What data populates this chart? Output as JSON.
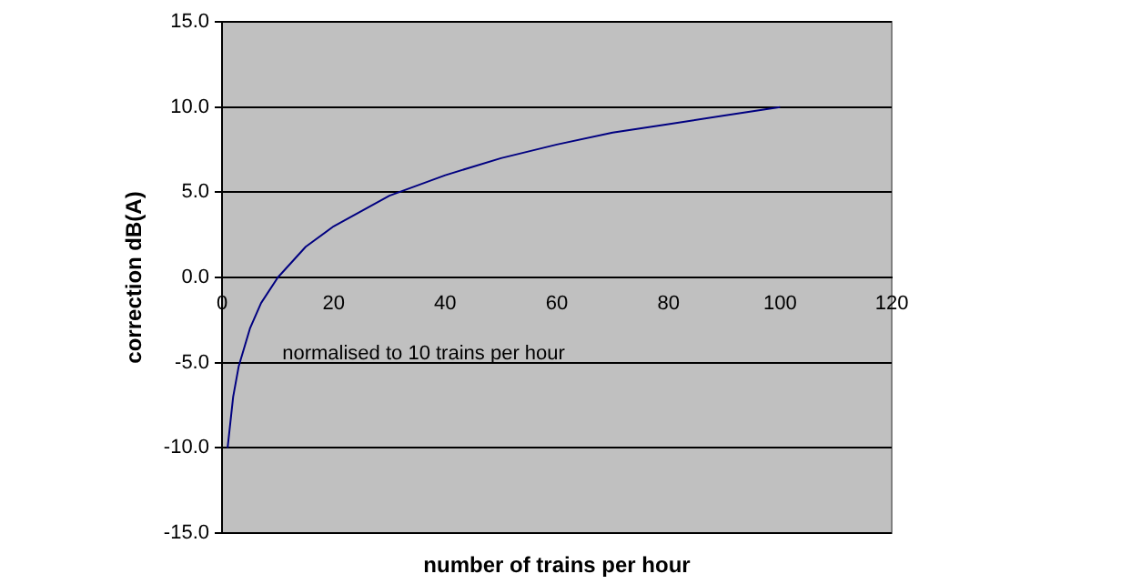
{
  "chart_data": {
    "type": "line",
    "xlabel": "number of trains per hour",
    "ylabel": "correction dB(A)",
    "x": [
      1,
      2,
      3,
      5,
      7,
      10,
      15,
      20,
      30,
      40,
      50,
      60,
      70,
      80,
      90,
      100
    ],
    "series": [
      {
        "color": "#000080",
        "values": [
          -10,
          -7,
          -5.2,
          -3,
          -1.5,
          0,
          1.8,
          3,
          4.8,
          6,
          7,
          7.8,
          8.5,
          9,
          9.5,
          10
        ]
      }
    ],
    "xlim": [
      0,
      120
    ],
    "xticks": [
      0,
      20,
      40,
      60,
      80,
      100,
      120
    ],
    "ylim": [
      -15,
      15
    ],
    "yticks": [
      {
        "value": -15,
        "label": "-15.0"
      },
      {
        "value": -10,
        "label": "-10.0"
      },
      {
        "value": -5,
        "label": "-5.0"
      },
      {
        "value": 0,
        "label": "0.0"
      },
      {
        "value": 5,
        "label": "5.0"
      },
      {
        "value": 10,
        "label": "10.0"
      },
      {
        "value": 15,
        "label": "15.0"
      }
    ],
    "grid": "y",
    "legend": false,
    "marker": "none",
    "line_style": "solid",
    "annotations": [
      "normalised to 10 trains per hour"
    ]
  }
}
